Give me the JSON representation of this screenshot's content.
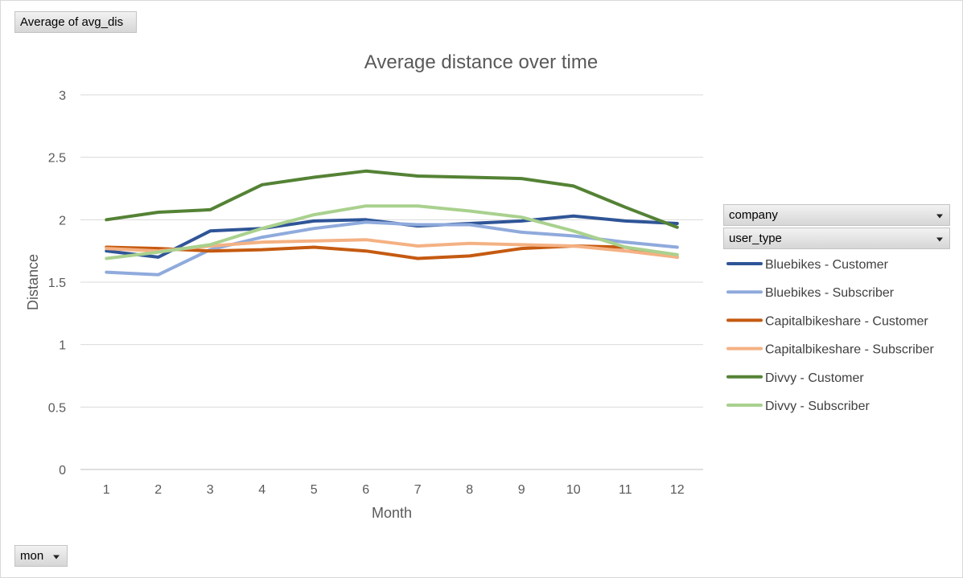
{
  "pivot": {
    "value_field": "Average of avg_dis",
    "axis_field": "mon",
    "legend_fields": [
      "company",
      "user_type"
    ]
  },
  "chart_data": {
    "type": "line",
    "title": "Average distance over time",
    "xlabel": "Month",
    "ylabel": "Distance",
    "ylim": [
      0,
      3
    ],
    "yticks": [
      "0",
      "0.5",
      "1",
      "1.5",
      "2",
      "2.5",
      "3"
    ],
    "categories": [
      "1",
      "2",
      "3",
      "4",
      "5",
      "6",
      "7",
      "8",
      "9",
      "10",
      "11",
      "12"
    ],
    "grid": true,
    "legend_position": "right",
    "series": [
      {
        "name": "Bluebikes - Customer",
        "color": "#2f5597",
        "values": [
          1.75,
          1.7,
          1.91,
          1.93,
          1.99,
          2.0,
          1.95,
          1.97,
          1.99,
          2.03,
          1.99,
          1.97
        ]
      },
      {
        "name": "Bluebikes - Subscriber",
        "color": "#8faadc",
        "values": [
          1.58,
          1.56,
          1.76,
          1.86,
          1.93,
          1.98,
          1.96,
          1.96,
          1.9,
          1.87,
          1.82,
          1.78
        ]
      },
      {
        "name": "Capitalbikeshare - Customer",
        "color": "#c55a11",
        "values": [
          1.78,
          1.77,
          1.75,
          1.76,
          1.78,
          1.75,
          1.69,
          1.71,
          1.77,
          1.79,
          1.78,
          1.7
        ]
      },
      {
        "name": "Capitalbikeshare - Subscriber",
        "color": "#f4b183",
        "values": [
          1.77,
          1.75,
          1.79,
          1.82,
          1.83,
          1.84,
          1.79,
          1.81,
          1.8,
          1.79,
          1.75,
          1.7
        ]
      },
      {
        "name": "Divvy - Customer",
        "color": "#548235",
        "values": [
          2.0,
          2.06,
          2.08,
          2.28,
          2.34,
          2.39,
          2.35,
          2.34,
          2.33,
          2.27,
          2.1,
          1.94
        ]
      },
      {
        "name": "Divvy - Subscriber",
        "color": "#a9d18e",
        "values": [
          1.69,
          1.74,
          1.8,
          1.93,
          2.04,
          2.11,
          2.11,
          2.07,
          2.02,
          1.91,
          1.78,
          1.72
        ]
      }
    ]
  }
}
